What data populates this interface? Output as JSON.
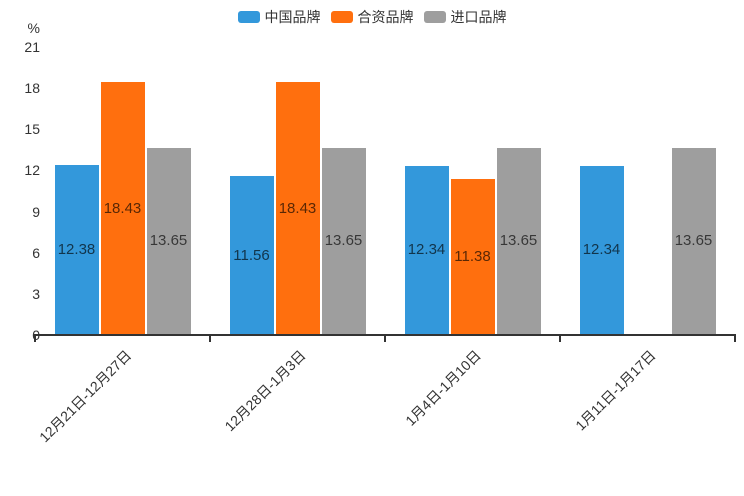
{
  "chart_data": {
    "type": "bar",
    "title": "",
    "unit_label": "%",
    "categories": [
      "12月21日-12月27日",
      "12月28日-1月3日",
      "1月4日-1月10日",
      "1月11日-1月17日"
    ],
    "series": [
      {
        "name": "中国品牌",
        "color": "#3398DB",
        "values": [
          12.38,
          11.56,
          12.34,
          12.34
        ]
      },
      {
        "name": "合资品牌",
        "color": "#FF6F0E",
        "values": [
          18.43,
          18.43,
          11.38,
          null
        ]
      },
      {
        "name": "进口品牌",
        "color": "#9E9E9E",
        "values": [
          13.65,
          13.65,
          13.65,
          13.65
        ]
      }
    ],
    "ylim": [
      0,
      21
    ],
    "y_ticks": [
      0,
      3,
      6,
      9,
      12,
      15,
      18,
      21
    ],
    "xlabel": "",
    "ylabel": "%",
    "legend_position": "top-center",
    "x_label_rotation_deg": 45,
    "value_label_position": "inside-center",
    "value_label_decimals": 2,
    "grid": false,
    "axis_color": "#333333",
    "value_label_color": "rgba(0,0,0,0.65)"
  }
}
